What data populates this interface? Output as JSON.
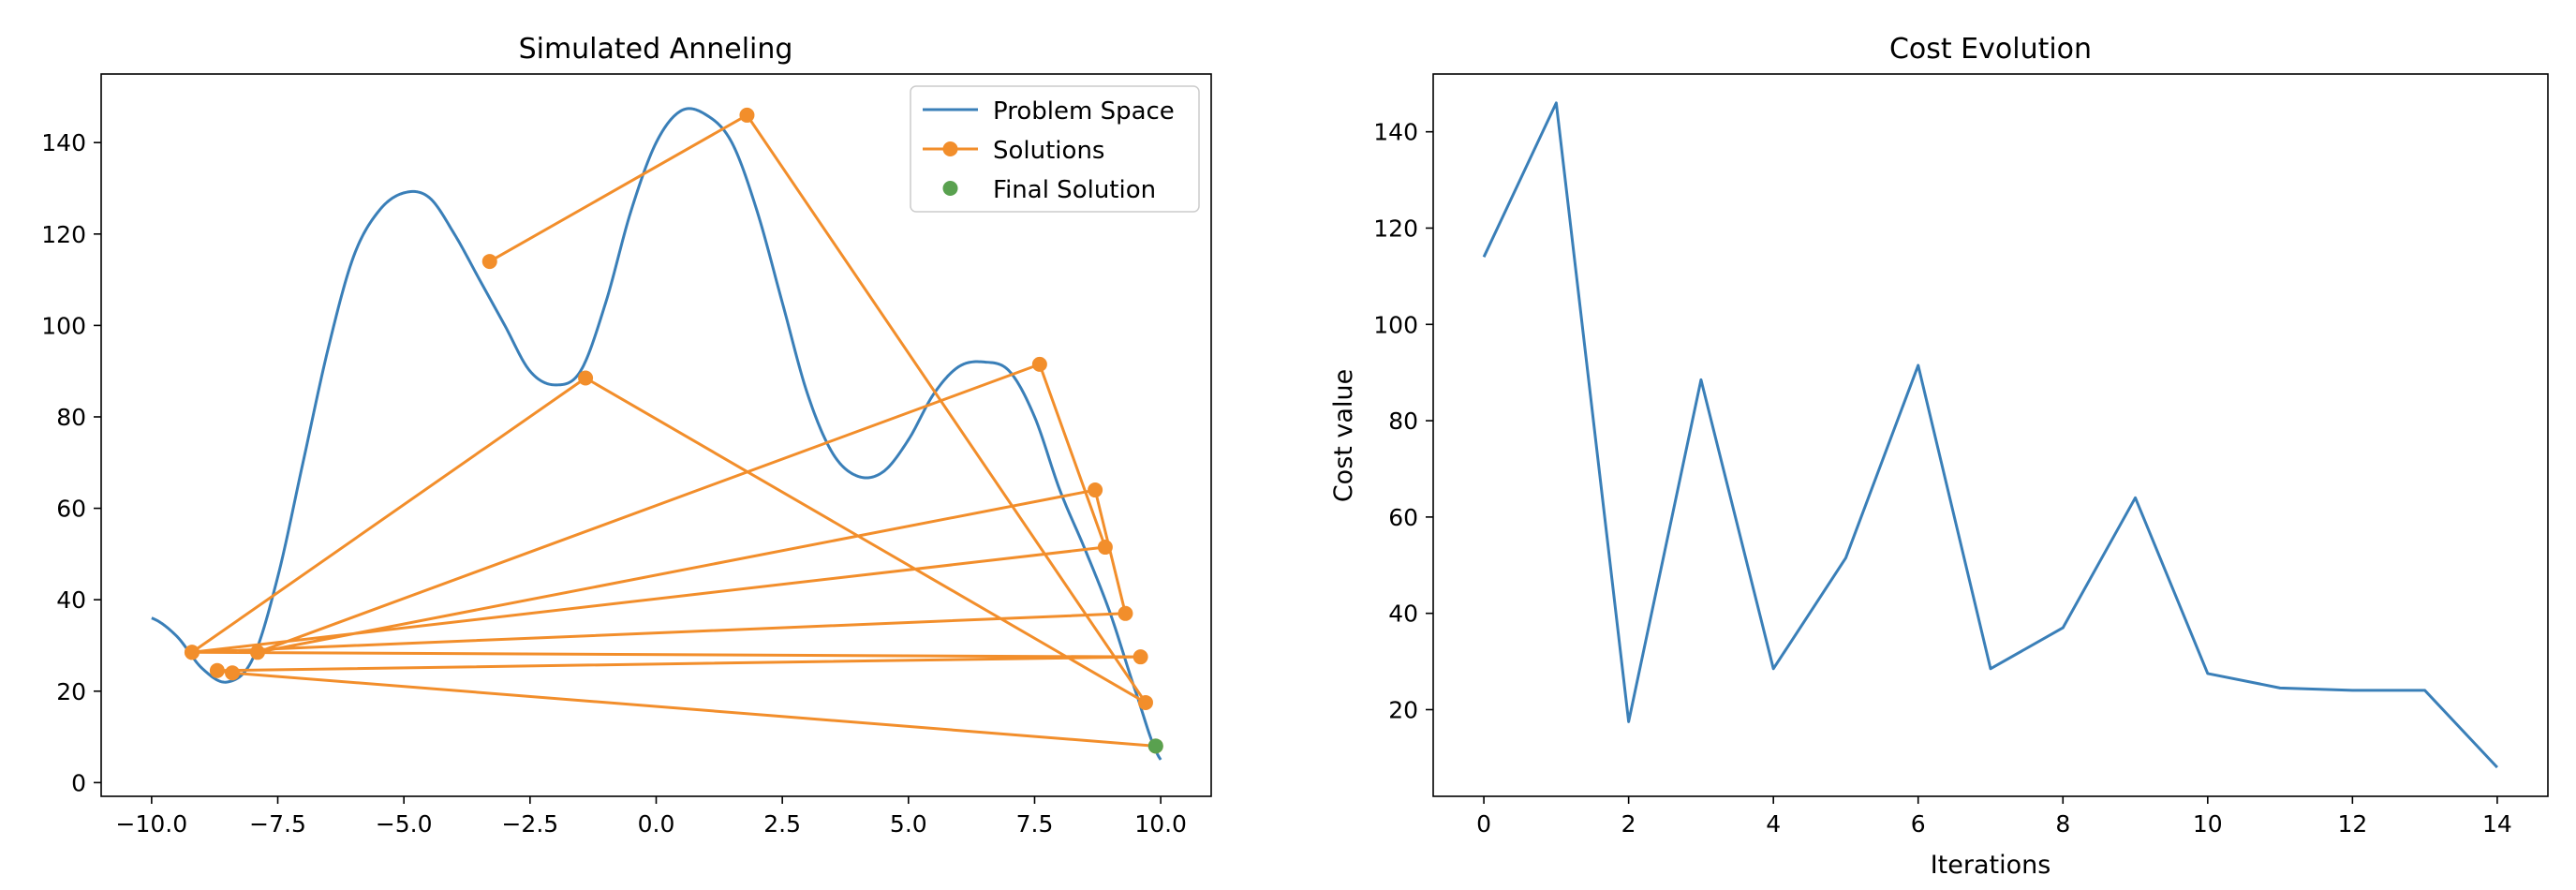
{
  "chart_data": [
    {
      "type": "line",
      "title": "Simulated Anneling",
      "xlabel": "",
      "ylabel": "",
      "xlim": [
        -11.0,
        11.0
      ],
      "ylim": [
        -3,
        155
      ],
      "xticks": [
        -10.0,
        -7.5,
        -5.0,
        -2.5,
        0.0,
        2.5,
        5.0,
        7.5,
        10.0
      ],
      "xtick_labels": [
        "−10.0",
        "−7.5",
        "−5.0",
        "−2.5",
        "0.0",
        "2.5",
        "5.0",
        "7.5",
        "10.0"
      ],
      "yticks": [
        0,
        20,
        40,
        60,
        80,
        100,
        120,
        140
      ],
      "ytick_labels": [
        "0",
        "20",
        "40",
        "60",
        "80",
        "100",
        "120",
        "140"
      ],
      "legend_position": "top-right",
      "series": [
        {
          "name": "Problem Space",
          "color": "#3a7fb8",
          "x": [
            -10.0,
            -9.5,
            -9.0,
            -8.5,
            -8.0,
            -7.5,
            -7.0,
            -6.5,
            -6.0,
            -5.5,
            -5.0,
            -4.5,
            -4.0,
            -3.5,
            -3.0,
            -2.5,
            -2.0,
            -1.5,
            -1.0,
            -0.5,
            0.0,
            0.5,
            1.0,
            1.5,
            2.0,
            2.5,
            3.0,
            3.5,
            4.0,
            4.5,
            5.0,
            5.5,
            6.0,
            6.5,
            7.0,
            7.5,
            8.0,
            8.5,
            9.0,
            9.5,
            10.0
          ],
          "y": [
            36,
            32,
            25,
            22,
            27,
            45,
            70,
            95,
            115,
            125,
            129,
            128,
            120,
            110,
            100,
            90,
            87,
            90,
            105,
            125,
            140,
            147,
            146,
            140,
            125,
            105,
            85,
            72,
            67,
            68,
            75,
            85,
            91,
            92,
            90,
            80,
            64,
            51,
            37,
            20,
            5
          ]
        },
        {
          "name": "Solutions",
          "color": "#f28e2b",
          "x": [
            -3.3,
            1.8,
            9.7,
            -1.4,
            -9.2,
            8.9,
            7.6,
            -7.9,
            8.7,
            9.3,
            -9.2,
            9.6,
            -8.7,
            -8.4,
            9.9
          ],
          "y": [
            114,
            146,
            17.5,
            88.5,
            28.5,
            51.5,
            91.5,
            28.5,
            64,
            37,
            28.5,
            27.5,
            24.5,
            24,
            8
          ]
        },
        {
          "name": "Final Solution",
          "color": "#59a14f",
          "x": [
            9.9
          ],
          "y": [
            8
          ]
        }
      ]
    },
    {
      "type": "line",
      "title": "Cost Evolution",
      "xlabel": "Iterations",
      "ylabel": "Cost value",
      "xlim": [
        -0.7,
        14.7
      ],
      "ylim": [
        2,
        152
      ],
      "xticks": [
        0,
        2,
        4,
        6,
        8,
        10,
        12,
        14
      ],
      "xtick_labels": [
        "0",
        "2",
        "4",
        "6",
        "8",
        "10",
        "12",
        "14"
      ],
      "yticks": [
        20,
        40,
        60,
        80,
        100,
        120,
        140
      ],
      "ytick_labels": [
        "20",
        "40",
        "60",
        "80",
        "100",
        "120",
        "140"
      ],
      "series": [
        {
          "color": "#3a7fb8",
          "x": [
            0,
            1,
            2,
            3,
            4,
            5,
            6,
            7,
            8,
            9,
            10,
            11,
            12,
            13,
            14
          ],
          "y": [
            114,
            146,
            17.5,
            88.5,
            28.5,
            51.5,
            91.5,
            28.5,
            37,
            64,
            27.5,
            24.5,
            24,
            24,
            8
          ]
        }
      ]
    }
  ]
}
